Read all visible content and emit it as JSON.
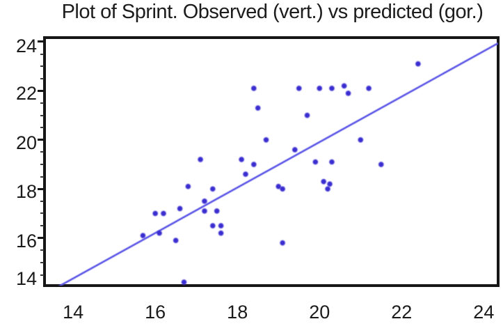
{
  "chart_data": {
    "type": "scatter",
    "title": "Plot of Sprint. Observed (vert.) vs predicted (gor.)",
    "xlabel": "",
    "ylabel": "",
    "x_ticks": [
      14,
      16,
      18,
      20,
      22,
      24
    ],
    "y_ticks": [
      14,
      16,
      18,
      20,
      22,
      24
    ],
    "y_minor_tick_step": 0.5,
    "xlim": [
      13.32,
      24.35
    ],
    "ylim": [
      14.06,
      24.14
    ],
    "grid": false,
    "legend": "none",
    "colors": {
      "point": "#3a2ed0",
      "line": "#5a55e6",
      "frame": "#161616",
      "text": "#1b1b1b",
      "background": "#ffffff"
    },
    "series": [
      {
        "name": "observations",
        "points": [
          [
            22.4,
            23.1
          ],
          [
            18.4,
            22.1
          ],
          [
            19.5,
            22.1
          ],
          [
            20.0,
            22.1
          ],
          [
            20.3,
            22.1
          ],
          [
            20.6,
            22.2
          ],
          [
            21.2,
            22.1
          ],
          [
            20.7,
            21.9
          ],
          [
            18.5,
            21.3
          ],
          [
            19.7,
            21.0
          ],
          [
            18.7,
            20.0
          ],
          [
            21.0,
            20.0
          ],
          [
            19.4,
            19.6
          ],
          [
            17.1,
            19.2
          ],
          [
            18.1,
            19.2
          ],
          [
            18.4,
            19.0
          ],
          [
            19.9,
            19.1
          ],
          [
            20.3,
            19.1
          ],
          [
            21.5,
            19.0
          ],
          [
            18.2,
            18.6
          ],
          [
            20.1,
            18.3
          ],
          [
            20.25,
            18.2
          ],
          [
            20.2,
            18.0
          ],
          [
            19.0,
            18.1
          ],
          [
            19.1,
            18.0
          ],
          [
            16.8,
            18.1
          ],
          [
            17.4,
            18.0
          ],
          [
            17.2,
            17.5
          ],
          [
            16.6,
            17.2
          ],
          [
            16.0,
            17.0
          ],
          [
            16.2,
            17.0
          ],
          [
            17.2,
            17.1
          ],
          [
            17.5,
            17.1
          ],
          [
            17.4,
            16.5
          ],
          [
            17.6,
            16.5
          ],
          [
            17.6,
            16.2
          ],
          [
            15.7,
            16.1
          ],
          [
            16.1,
            16.2
          ],
          [
            16.5,
            15.9
          ],
          [
            19.1,
            15.8
          ],
          [
            16.7,
            14.2
          ]
        ]
      }
    ],
    "fit_line": {
      "x1": 13.6,
      "y1": 13.98,
      "x2": 24.35,
      "y2": 23.94
    }
  }
}
